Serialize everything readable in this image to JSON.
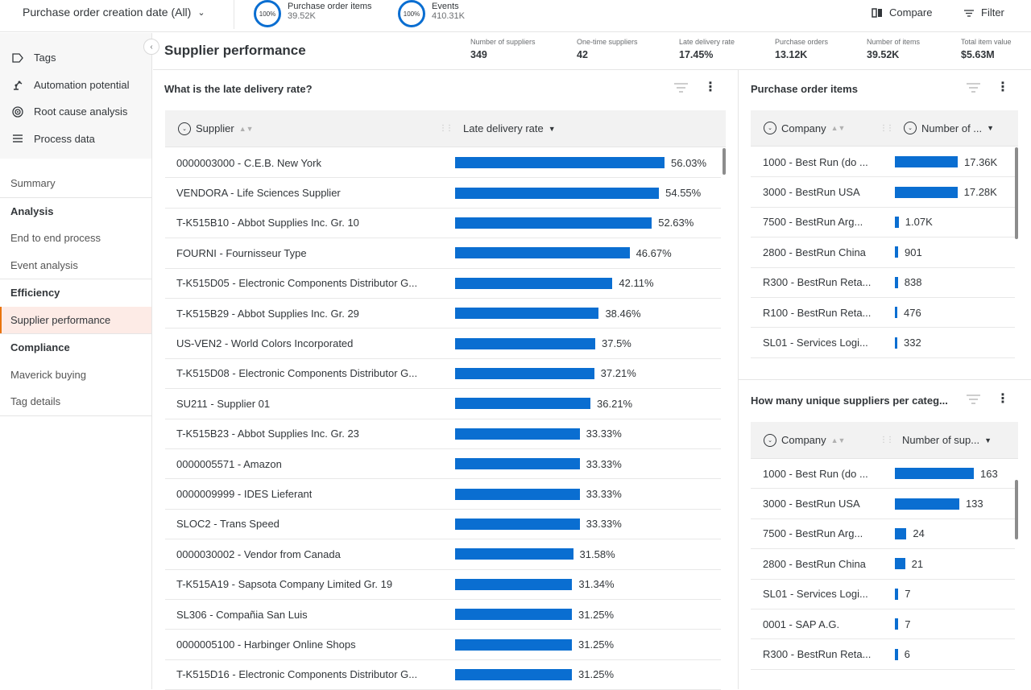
{
  "topbar": {
    "date_filter": "Purchase order creation date (All)",
    "kpi1": {
      "pct": "100%",
      "label": "Purchase order items",
      "value": "39.52K"
    },
    "kpi2": {
      "pct": "100%",
      "label": "Events",
      "value": "410.31K"
    },
    "compare_label": "Compare",
    "filter_label": "Filter"
  },
  "sidebar": {
    "tools": [
      {
        "label": "Tags",
        "icon": "tag-icon"
      },
      {
        "label": "Automation potential",
        "icon": "robot-arm-icon"
      },
      {
        "label": "Root cause analysis",
        "icon": "target-icon"
      },
      {
        "label": "Process data",
        "icon": "list-icon"
      }
    ],
    "summary": "Summary",
    "analysis": "Analysis",
    "end_to_end": "End to end process",
    "event_analysis": "Event analysis",
    "efficiency": "Efficiency",
    "supplier_performance": "Supplier performance",
    "compliance": "Compliance",
    "maverick": "Maverick buying",
    "tag_details": "Tag details"
  },
  "header": {
    "title": "Supplier performance",
    "kpis": [
      {
        "label": "Number of suppliers",
        "value": "349"
      },
      {
        "label": "One-time suppliers",
        "value": "42"
      },
      {
        "label": "Late delivery rate",
        "value": "17.45%"
      },
      {
        "label": "Purchase orders",
        "value": "13.12K"
      },
      {
        "label": "Number of items",
        "value": "39.52K"
      },
      {
        "label": "Total item value",
        "value": "$5.63M"
      }
    ]
  },
  "late_delivery": {
    "title": "What is the late delivery rate?",
    "col_supplier": "Supplier",
    "col_rate": "Late delivery rate",
    "rows": [
      {
        "name": "0000003000 - C.E.B. New York",
        "value": 56.03,
        "label": "56.03%"
      },
      {
        "name": "VENDORA - Life Sciences Supplier",
        "value": 54.55,
        "label": "54.55%"
      },
      {
        "name": "T-K515B10 - Abbot Supplies Inc. Gr. 10",
        "value": 52.63,
        "label": "52.63%"
      },
      {
        "name": "FOURNI - Fournisseur Type",
        "value": 46.67,
        "label": "46.67%"
      },
      {
        "name": "T-K515D05 - Electronic Components Distributor G...",
        "value": 42.11,
        "label": "42.11%"
      },
      {
        "name": "T-K515B29 - Abbot Supplies Inc. Gr. 29",
        "value": 38.46,
        "label": "38.46%"
      },
      {
        "name": "US-VEN2 - World Colors Incorporated",
        "value": 37.5,
        "label": "37.5%"
      },
      {
        "name": "T-K515D08 - Electronic Components Distributor G...",
        "value": 37.21,
        "label": "37.21%"
      },
      {
        "name": "SU211 - Supplier 01",
        "value": 36.21,
        "label": "36.21%"
      },
      {
        "name": "T-K515B23 - Abbot Supplies Inc. Gr. 23",
        "value": 33.33,
        "label": "33.33%"
      },
      {
        "name": "0000005571 - Amazon",
        "value": 33.33,
        "label": "33.33%"
      },
      {
        "name": "0000009999 - IDES Lieferant",
        "value": 33.33,
        "label": "33.33%"
      },
      {
        "name": "SLOC2 - Trans Speed",
        "value": 33.33,
        "label": "33.33%"
      },
      {
        "name": "0000030002 - Vendor from Canada",
        "value": 31.58,
        "label": "31.58%"
      },
      {
        "name": "T-K515A19 - Sapsota Company Limited Gr. 19",
        "value": 31.34,
        "label": "31.34%"
      },
      {
        "name": "SL306 - Compañia San Luis",
        "value": 31.25,
        "label": "31.25%"
      },
      {
        "name": "0000005100 - Harbinger Online Shops",
        "value": 31.25,
        "label": "31.25%"
      },
      {
        "name": "T-K515D16 - Electronic Components Distributor G...",
        "value": 31.25,
        "label": "31.25%"
      }
    ]
  },
  "po_items": {
    "title": "Purchase order items",
    "col_company": "Company",
    "col_number": "Number of ...",
    "rows": [
      {
        "name": "1000 - Best Run (do ...",
        "value": 17360,
        "label": "17.36K"
      },
      {
        "name": "3000 - BestRun USA",
        "value": 17280,
        "label": "17.28K"
      },
      {
        "name": "7500 - BestRun Arg...",
        "value": 1070,
        "label": "1.07K"
      },
      {
        "name": "2800 - BestRun China",
        "value": 901,
        "label": "901"
      },
      {
        "name": "R300 - BestRun Reta...",
        "value": 838,
        "label": "838"
      },
      {
        "name": "R100 - BestRun Reta...",
        "value": 476,
        "label": "476"
      },
      {
        "name": "SL01 - Services Logi...",
        "value": 332,
        "label": "332"
      }
    ]
  },
  "unique_suppliers": {
    "title": "How many unique suppliers per categ...",
    "col_company": "Company",
    "col_number": "Number of sup...",
    "rows": [
      {
        "name": "1000 - Best Run (do ...",
        "value": 163,
        "label": "163"
      },
      {
        "name": "3000 - BestRun USA",
        "value": 133,
        "label": "133"
      },
      {
        "name": "7500 - BestRun Arg...",
        "value": 24,
        "label": "24"
      },
      {
        "name": "2800 - BestRun China",
        "value": 21,
        "label": "21"
      },
      {
        "name": "SL01 - Services Logi...",
        "value": 7,
        "label": "7"
      },
      {
        "name": "0001 - SAP A.G.",
        "value": 7,
        "label": "7"
      },
      {
        "name": "R300 - BestRun Reta...",
        "value": 6,
        "label": "6"
      }
    ]
  },
  "colors": {
    "bar": "#0a6ed1",
    "active_bg": "#fdebe6",
    "active_accent": "#e9730c"
  }
}
